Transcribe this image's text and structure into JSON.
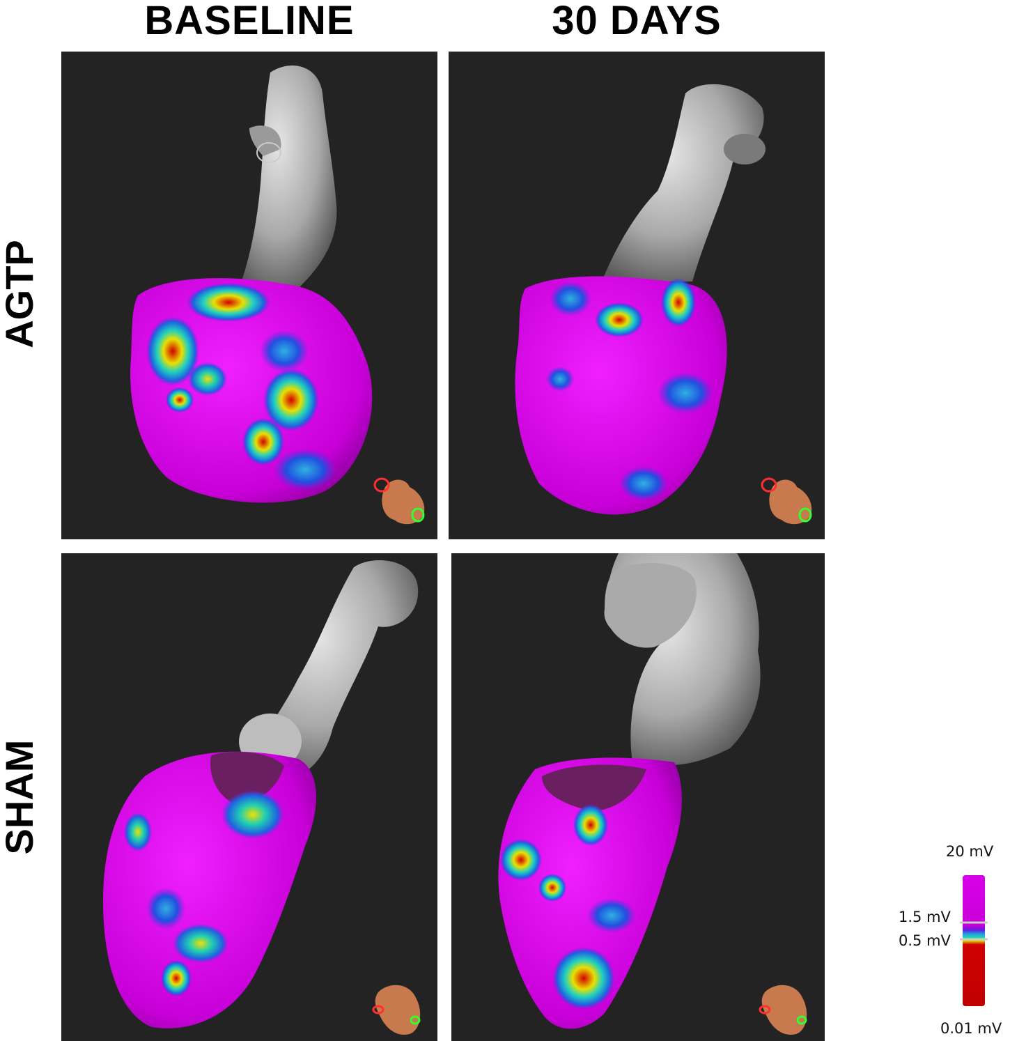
{
  "columns": {
    "baseline": "BASELINE",
    "day30": "30 DAYS"
  },
  "rows": {
    "agtp": "AGTP",
    "sham": "SHAM"
  },
  "legend": {
    "top": "20 mV",
    "upper_threshold": "1.5 mV",
    "lower_threshold": "0.5 mV",
    "bottom": "0.01 mV"
  },
  "colors": {
    "panel_background": "#232323",
    "healthy_tissue": "#d000e0",
    "scar_tissue": "#c80000",
    "vessel_gray": "#b8b8b8",
    "torso_icon": "#c87a4e"
  },
  "icons": [
    "torso-orientation-icon"
  ]
}
